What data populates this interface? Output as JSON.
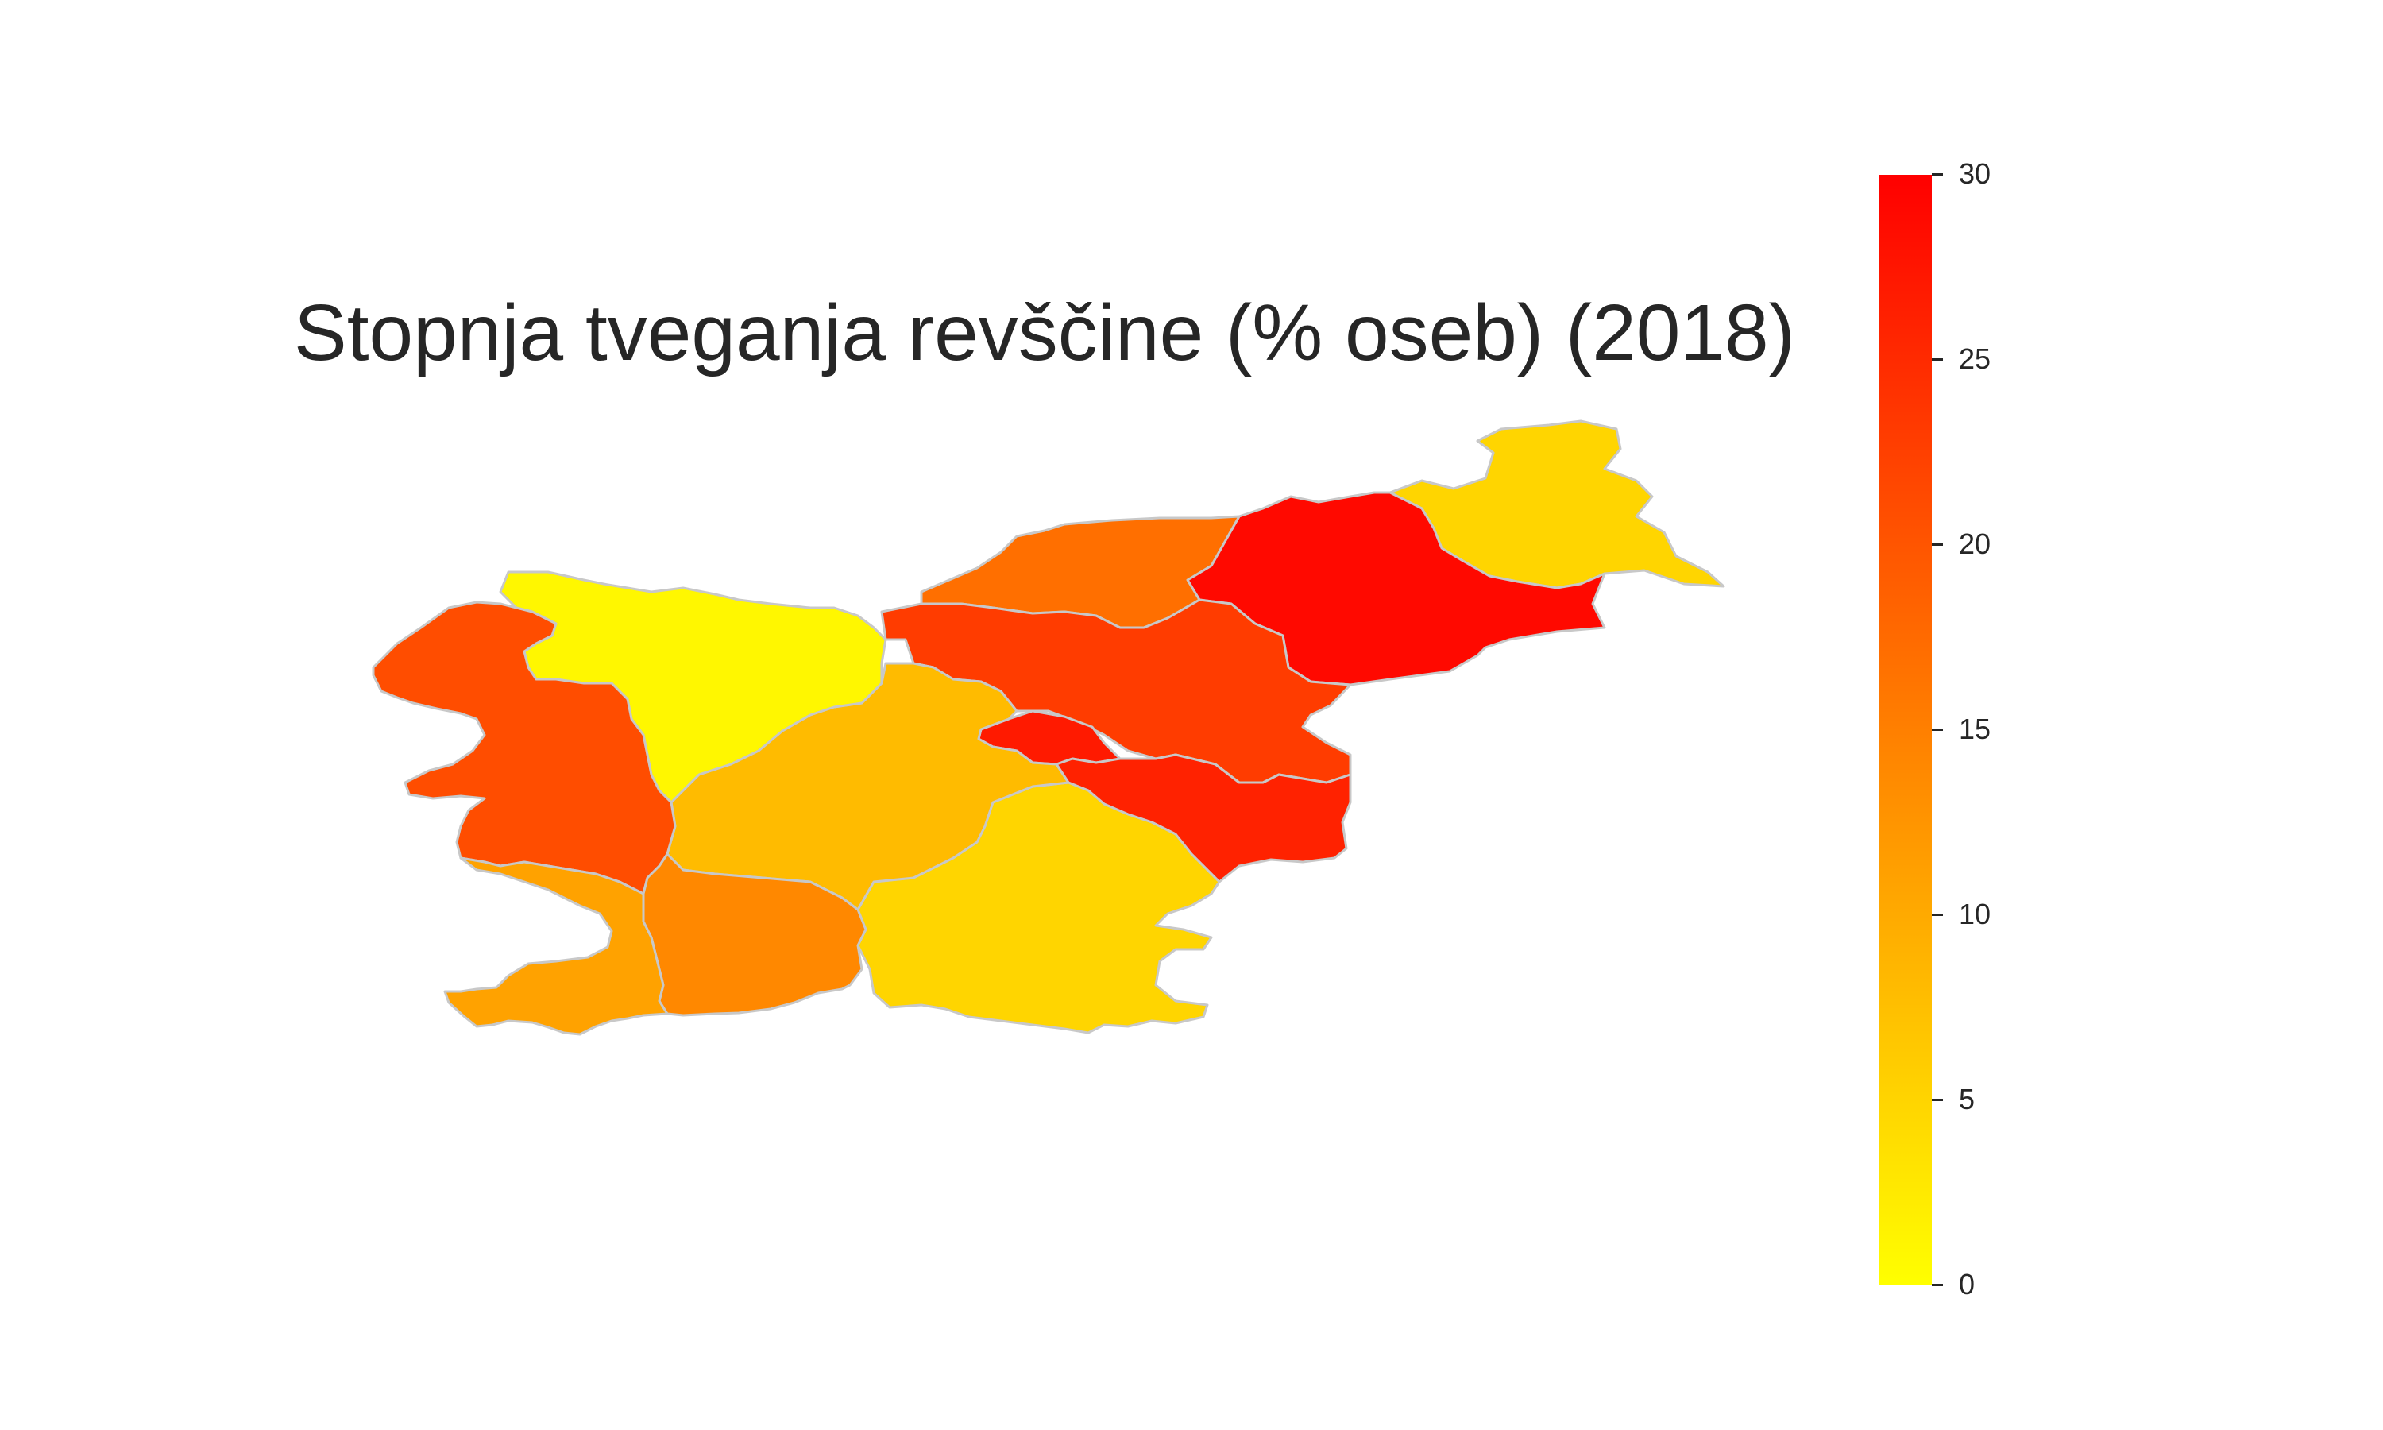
{
  "map": {
    "title": "Stopnja tveganja revščine (% oseb) (2018)",
    "legend": {
      "type": "continuous-colorbar",
      "placement": "right",
      "min": 0,
      "max": 30,
      "color_low": "#ffff00",
      "color_high": "#ff0000",
      "ticks": [
        "0",
        "5",
        "10",
        "15",
        "20",
        "25",
        "30"
      ]
    },
    "regions": [
      {
        "id": "pomurska",
        "value": 5
      },
      {
        "id": "podravska",
        "value": 29
      },
      {
        "id": "koroska",
        "value": 17
      },
      {
        "id": "savinjska",
        "value": 23
      },
      {
        "id": "zasavska",
        "value": 27
      },
      {
        "id": "posavska",
        "value": 26
      },
      {
        "id": "jugovzhodna-slovenija",
        "value": 5
      },
      {
        "id": "osrednjeslovenska",
        "value": 8
      },
      {
        "id": "gorenjska",
        "value": 1
      },
      {
        "id": "primorsko-notranjska",
        "value": 14
      },
      {
        "id": "goriska",
        "value": 21
      },
      {
        "id": "obalno-kraska",
        "value": 11
      }
    ]
  }
}
